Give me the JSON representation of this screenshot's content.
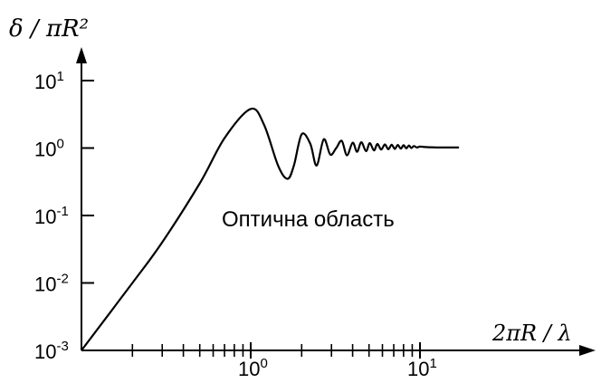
{
  "chart_data": {
    "type": "line",
    "title": "",
    "ylabel": "δ / πR²",
    "xlabel": "2πR / λ",
    "annotation": "Оптична область",
    "x_scale": "log",
    "y_scale": "log",
    "xlim": [
      0.1,
      20
    ],
    "ylim": [
      0.001,
      20
    ],
    "grid": false,
    "y_ticks": [
      {
        "base": "10",
        "exp": "1"
      },
      {
        "base": "10",
        "exp": "0"
      },
      {
        "base": "10",
        "exp": "-1"
      },
      {
        "base": "10",
        "exp": "-2"
      },
      {
        "base": "10",
        "exp": "-3"
      }
    ],
    "x_ticks": [
      {
        "base": "10",
        "exp": "0"
      },
      {
        "base": "10",
        "exp": "1"
      }
    ],
    "series": [
      {
        "x": [
          0.1,
          0.2,
          0.3,
          0.5,
          0.7,
          1.0,
          1.2,
          1.45,
          1.65,
          1.8,
          2.0,
          2.25,
          2.45,
          2.7,
          2.95,
          3.2,
          3.45,
          3.7,
          4.0,
          4.25,
          4.5,
          4.8,
          5.05,
          5.35,
          5.6,
          5.9,
          6.2,
          6.5,
          6.8,
          7.1,
          7.4,
          7.7,
          8.0,
          8.3,
          8.6,
          8.9,
          9.2,
          9.6,
          10.0,
          11.0,
          13.0,
          15.0,
          17.0
        ],
        "y": [
          0.001,
          0.01,
          0.04,
          0.3,
          1.4,
          3.8,
          2.2,
          0.55,
          0.35,
          0.55,
          1.6,
          1.15,
          0.55,
          1.35,
          0.8,
          1.0,
          1.28,
          0.78,
          1.2,
          0.88,
          1.22,
          0.9,
          1.18,
          0.92,
          1.15,
          0.95,
          1.13,
          0.96,
          1.12,
          0.97,
          1.11,
          0.98,
          1.1,
          0.99,
          1.09,
          1.0,
          1.07,
          1.02,
          1.05,
          1.03,
          1.02,
          1.02,
          1.02
        ]
      }
    ]
  }
}
